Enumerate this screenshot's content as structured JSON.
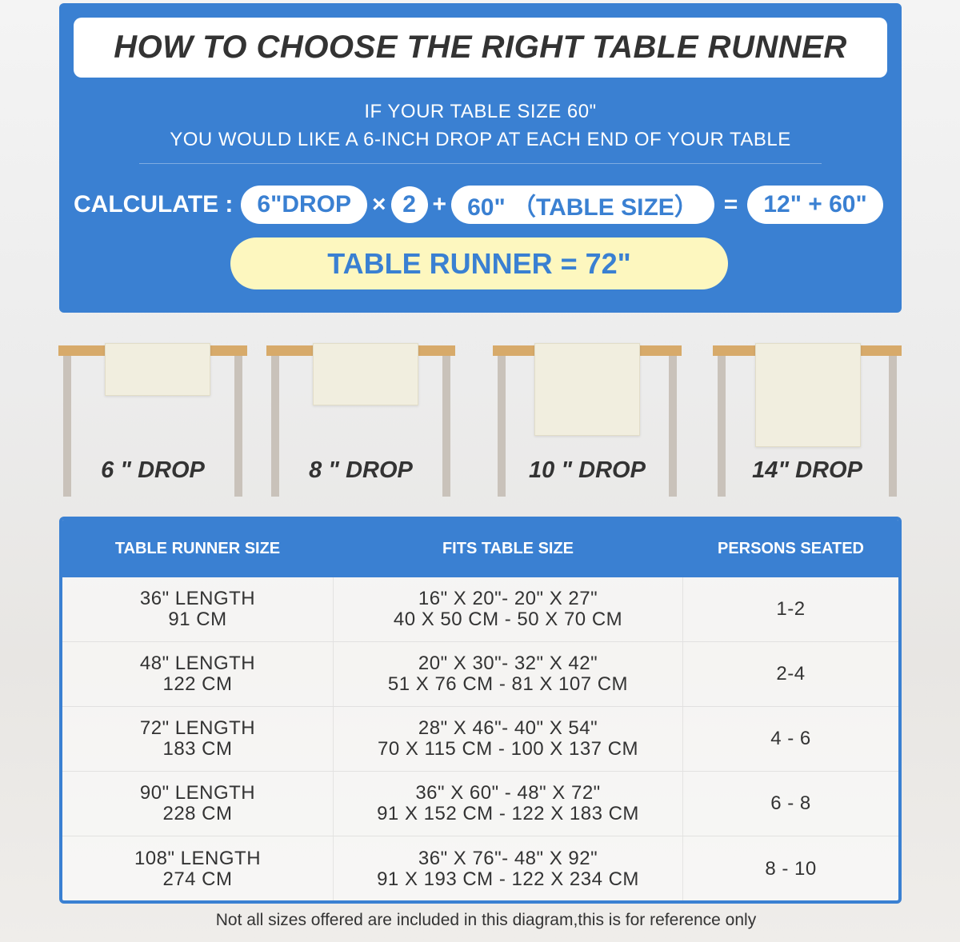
{
  "header": {
    "title": "HOW TO CHOOSE THE RIGHT TABLE RUNNER",
    "line1": "IF YOUR TABLE SIZE 60\"",
    "line2": "YOU WOULD LIKE A 6-INCH DROP AT EACH END OF YOUR TABLE"
  },
  "calc": {
    "label": "CALCULATE :",
    "drop": "6\"DROP",
    "times": "×",
    "multiplier": "2",
    "plus": "+",
    "table_size": "60\" （TABLE SIZE）",
    "equals": "=",
    "sum": "12\" + 60\"",
    "result": "TABLE RUNNER = 72\""
  },
  "drops": [
    "6 \" DROP",
    "8 \" DROP",
    "10 \" DROP",
    "14\" DROP"
  ],
  "table": {
    "headers": [
      "TABLE RUNNER SIZE",
      "FITS TABLE SIZE",
      "PERSONS SEATED"
    ],
    "rows": [
      {
        "length": "36\" LENGTH",
        "cm": "91 CM",
        "fits_in": "16\" X 20\"- 20\" X 27\"",
        "fits_cm": "40 X 50 CM - 50 X 70 CM",
        "persons": "1-2"
      },
      {
        "length": "48\" LENGTH",
        "cm": "122 CM",
        "fits_in": "20\" X 30\"- 32\" X 42\"",
        "fits_cm": "51 X 76 CM - 81 X 107 CM",
        "persons": "2-4"
      },
      {
        "length": "72\" LENGTH",
        "cm": "183 CM",
        "fits_in": "28\" X 46\"- 40\" X 54\"",
        "fits_cm": "70 X 115 CM - 100 X 137 CM",
        "persons": "4 - 6"
      },
      {
        "length": "90\" LENGTH",
        "cm": "228 CM",
        "fits_in": "36\" X 60\" - 48\" X 72\"",
        "fits_cm": "91 X 152 CM - 122 X 183 CM",
        "persons": "6 - 8"
      },
      {
        "length": "108\" LENGTH",
        "cm": "274 CM",
        "fits_in": "36\" X 76\"- 48\" X 92\"",
        "fits_cm": "91 X 193 CM - 122 X 234 CM",
        "persons": "8 - 10"
      }
    ]
  },
  "footnote": "Not all sizes offered are included in this diagram,this is for reference only",
  "colors": {
    "primary": "#3a80d2",
    "highlight": "#fdf7bf",
    "wood": "#d7aa6a"
  }
}
